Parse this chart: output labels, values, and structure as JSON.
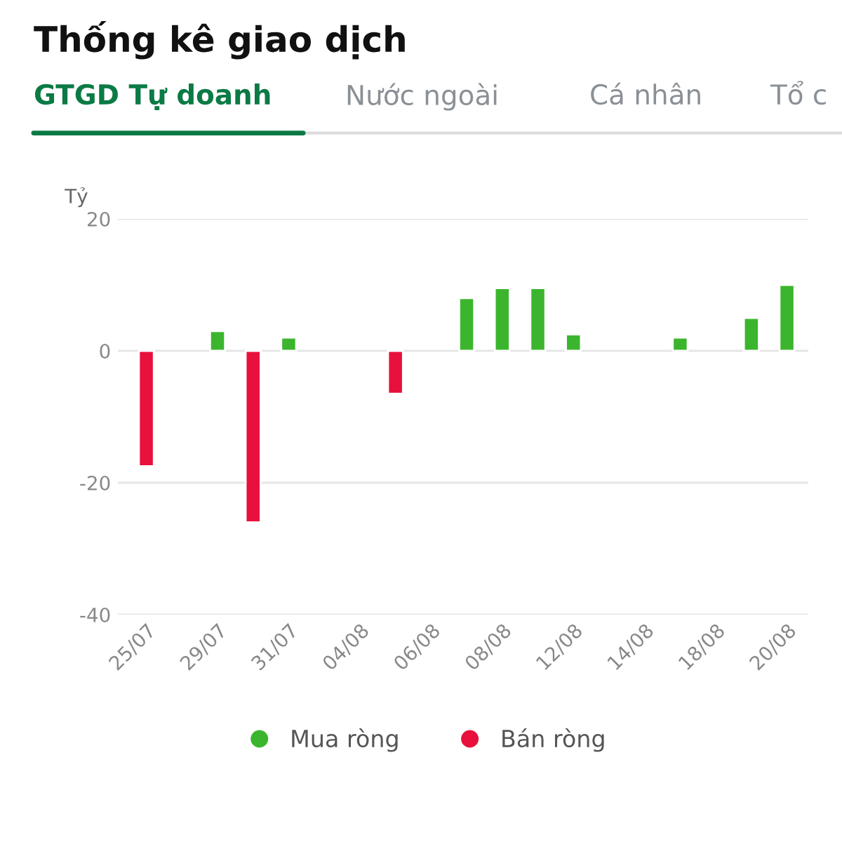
{
  "chart_data": {
    "type": "bar",
    "title": "Thống kê giao dịch",
    "annotations": [
      "GTGD Tự doanh",
      "Nước ngoài",
      "Cá nhân",
      "Tổ c"
    ],
    "ylabel": "Tỷ",
    "categories": [
      "25/07",
      null,
      "29/07",
      null,
      "31/07",
      null,
      "04/08",
      null,
      "06/08",
      null,
      "08/08",
      null,
      "12/08",
      null,
      "14/08",
      null,
      "18/08",
      null,
      "20/08"
    ],
    "series": [
      {
        "name": "Mua ròng",
        "color": "#3cb52e",
        "values": [
          null,
          null,
          3,
          null,
          2,
          null,
          null,
          null,
          null,
          8,
          9.5,
          9.5,
          2.5,
          null,
          null,
          2,
          null,
          5,
          10
        ]
      },
      {
        "name": "Bán ròng",
        "color": "#e8103c",
        "values": [
          -17.5,
          null,
          null,
          -26,
          null,
          null,
          null,
          -6.5,
          null,
          null,
          null,
          null,
          null,
          null,
          null,
          null,
          null,
          null,
          null
        ]
      }
    ],
    "ylim": [
      -40,
      20
    ],
    "yticks": [
      -40,
      -20,
      0,
      20
    ],
    "grid": "y",
    "legend": "bottom"
  }
}
